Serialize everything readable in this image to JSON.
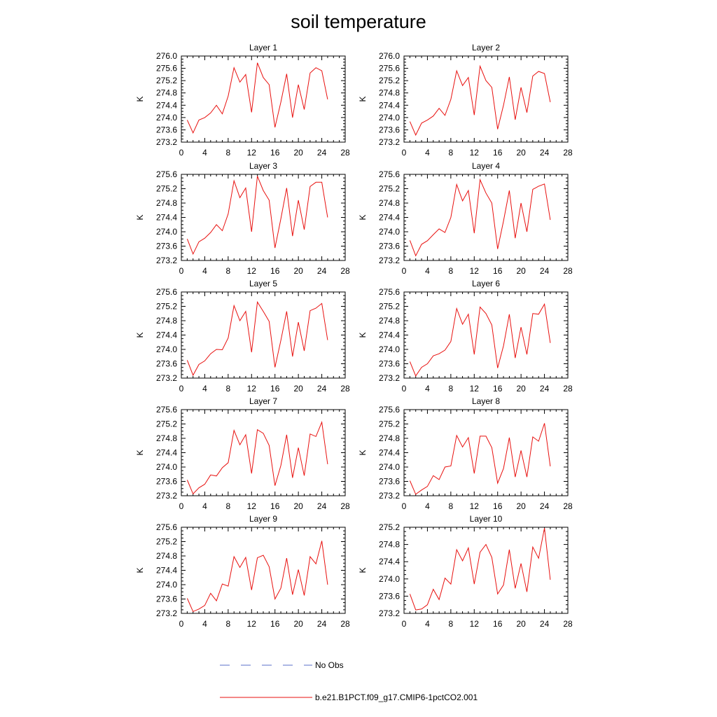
{
  "title": "soil temperature",
  "legend": {
    "entries": [
      {
        "label": "No Obs",
        "color": "#5a6fc9",
        "dash": "dashed"
      },
      {
        "label": "b.e21.B1PCT.f09_g17.CMIP6-1pctCO2.001",
        "color": "#e8110f",
        "dash": "solid"
      }
    ],
    "placement": "bottom-center"
  },
  "chart_data": [
    {
      "type": "line",
      "title": "Layer 1",
      "xlabel": "",
      "ylabel": "K",
      "xlim": [
        0,
        28
      ],
      "xticks": [
        0,
        4,
        8,
        12,
        16,
        20,
        24,
        28
      ],
      "ylim": [
        273.2,
        276.0
      ],
      "yticks": [
        "273.2",
        "273.6",
        "274.0",
        "274.4",
        "274.8",
        "275.2",
        "275.6",
        "276.0"
      ],
      "x": [
        1,
        2,
        3,
        4,
        5,
        6,
        7,
        8,
        9,
        10,
        11,
        12,
        13,
        14,
        15,
        16,
        17,
        18,
        19,
        20,
        21,
        22,
        23,
        24,
        25
      ],
      "series": [
        {
          "name": "b.e21.B1PCT.f09_g17.CMIP6-1pctCO2.001",
          "color": "#e8110f",
          "values": [
            273.92,
            273.5,
            273.92,
            274.0,
            274.15,
            274.4,
            274.12,
            274.7,
            275.62,
            275.15,
            275.4,
            274.17,
            275.78,
            275.3,
            275.07,
            273.68,
            274.5,
            275.42,
            274.0,
            275.07,
            274.26,
            275.45,
            275.62,
            275.52,
            274.59
          ]
        }
      ]
    },
    {
      "type": "line",
      "title": "Layer 2",
      "xlabel": "",
      "ylabel": "K",
      "xlim": [
        0,
        28
      ],
      "xticks": [
        0,
        4,
        8,
        12,
        16,
        20,
        24,
        28
      ],
      "ylim": [
        273.2,
        276.0
      ],
      "yticks": [
        "273.2",
        "273.6",
        "274.0",
        "274.4",
        "274.8",
        "275.2",
        "275.6",
        "276.0"
      ],
      "x": [
        1,
        2,
        3,
        4,
        5,
        6,
        7,
        8,
        9,
        10,
        11,
        12,
        13,
        14,
        15,
        16,
        17,
        18,
        19,
        20,
        21,
        22,
        23,
        24,
        25
      ],
      "series": [
        {
          "name": "b.e21.B1PCT.f09_g17.CMIP6-1pctCO2.001",
          "color": "#e8110f",
          "values": [
            273.87,
            273.43,
            273.82,
            273.92,
            274.05,
            274.3,
            274.07,
            274.59,
            275.52,
            275.04,
            275.3,
            274.08,
            275.67,
            275.2,
            274.98,
            273.62,
            274.4,
            275.32,
            273.93,
            274.98,
            274.16,
            275.35,
            275.5,
            275.43,
            274.5
          ]
        }
      ]
    },
    {
      "type": "line",
      "title": "Layer 3",
      "xlabel": "",
      "ylabel": "K",
      "xlim": [
        0,
        28
      ],
      "xticks": [
        0,
        4,
        8,
        12,
        16,
        20,
        24,
        28
      ],
      "ylim": [
        273.2,
        275.6
      ],
      "yticks": [
        "273.2",
        "273.6",
        "274.0",
        "274.4",
        "274.8",
        "275.2",
        "275.6"
      ],
      "x": [
        1,
        2,
        3,
        4,
        5,
        6,
        7,
        8,
        9,
        10,
        11,
        12,
        13,
        14,
        15,
        16,
        17,
        18,
        19,
        20,
        21,
        22,
        23,
        24,
        25
      ],
      "series": [
        {
          "name": "b.e21.B1PCT.f09_g17.CMIP6-1pctCO2.001",
          "color": "#e8110f",
          "values": [
            273.8,
            273.38,
            273.72,
            273.82,
            273.98,
            274.2,
            274.03,
            274.5,
            275.42,
            274.95,
            275.22,
            274.0,
            275.55,
            275.15,
            274.88,
            273.55,
            274.36,
            275.22,
            273.88,
            274.88,
            274.06,
            275.26,
            275.38,
            275.38,
            274.4
          ]
        }
      ]
    },
    {
      "type": "line",
      "title": "Layer 4",
      "xlabel": "",
      "ylabel": "K",
      "xlim": [
        0,
        28
      ],
      "xticks": [
        0,
        4,
        8,
        12,
        16,
        20,
        24,
        28
      ],
      "ylim": [
        273.2,
        275.6
      ],
      "yticks": [
        "273.2",
        "273.6",
        "274.0",
        "274.4",
        "274.8",
        "275.2",
        "275.6"
      ],
      "x": [
        1,
        2,
        3,
        4,
        5,
        6,
        7,
        8,
        9,
        10,
        11,
        12,
        13,
        14,
        15,
        16,
        17,
        18,
        19,
        20,
        21,
        22,
        23,
        24,
        25
      ],
      "series": [
        {
          "name": "b.e21.B1PCT.f09_g17.CMIP6-1pctCO2.001",
          "color": "#e8110f",
          "values": [
            273.76,
            273.33,
            273.65,
            273.75,
            273.92,
            274.08,
            273.98,
            274.4,
            275.32,
            274.86,
            275.15,
            273.96,
            275.45,
            275.08,
            274.8,
            273.52,
            274.3,
            275.15,
            273.82,
            274.8,
            274.0,
            275.18,
            275.27,
            275.33,
            274.33
          ]
        }
      ]
    },
    {
      "type": "line",
      "title": "Layer 5",
      "xlabel": "",
      "ylabel": "K",
      "xlim": [
        0,
        28
      ],
      "xticks": [
        0,
        4,
        8,
        12,
        16,
        20,
        24,
        28
      ],
      "ylim": [
        273.2,
        275.6
      ],
      "yticks": [
        "273.2",
        "273.6",
        "274.0",
        "274.4",
        "274.8",
        "275.2",
        "275.6"
      ],
      "x": [
        1,
        2,
        3,
        4,
        5,
        6,
        7,
        8,
        9,
        10,
        11,
        12,
        13,
        14,
        15,
        16,
        17,
        18,
        19,
        20,
        21,
        22,
        23,
        24,
        25
      ],
      "series": [
        {
          "name": "b.e21.B1PCT.f09_g17.CMIP6-1pctCO2.001",
          "color": "#e8110f",
          "values": [
            273.7,
            273.28,
            273.58,
            273.68,
            273.88,
            274.0,
            273.99,
            274.32,
            275.22,
            274.8,
            275.06,
            273.92,
            275.32,
            275.06,
            274.78,
            273.5,
            274.25,
            275.06,
            273.8,
            274.76,
            273.96,
            275.08,
            275.15,
            275.28,
            274.26
          ]
        }
      ]
    },
    {
      "type": "line",
      "title": "Layer 6",
      "xlabel": "",
      "ylabel": "K",
      "xlim": [
        0,
        28
      ],
      "xticks": [
        0,
        4,
        8,
        12,
        16,
        20,
        24,
        28
      ],
      "ylim": [
        273.2,
        275.6
      ],
      "yticks": [
        "273.2",
        "273.6",
        "274.0",
        "274.4",
        "274.8",
        "275.2",
        "275.6"
      ],
      "x": [
        1,
        2,
        3,
        4,
        5,
        6,
        7,
        8,
        9,
        10,
        11,
        12,
        13,
        14,
        15,
        16,
        17,
        18,
        19,
        20,
        21,
        22,
        23,
        24,
        25
      ],
      "series": [
        {
          "name": "b.e21.B1PCT.f09_g17.CMIP6-1pctCO2.001",
          "color": "#e8110f",
          "values": [
            273.66,
            273.26,
            273.5,
            273.6,
            273.82,
            273.88,
            273.98,
            274.22,
            275.14,
            274.7,
            274.98,
            273.86,
            275.18,
            275.0,
            274.68,
            273.48,
            274.1,
            274.98,
            273.76,
            274.62,
            273.86,
            275.0,
            274.98,
            275.26,
            274.18
          ]
        }
      ]
    },
    {
      "type": "line",
      "title": "Layer 7",
      "xlabel": "",
      "ylabel": "K",
      "xlim": [
        0,
        28
      ],
      "xticks": [
        0,
        4,
        8,
        12,
        16,
        20,
        24,
        28
      ],
      "ylim": [
        273.2,
        275.6
      ],
      "yticks": [
        "273.2",
        "273.6",
        "274.0",
        "274.4",
        "274.8",
        "275.2",
        "275.6"
      ],
      "x": [
        1,
        2,
        3,
        4,
        5,
        6,
        7,
        8,
        9,
        10,
        11,
        12,
        13,
        14,
        15,
        16,
        17,
        18,
        19,
        20,
        21,
        22,
        23,
        24,
        25
      ],
      "series": [
        {
          "name": "b.e21.B1PCT.f09_g17.CMIP6-1pctCO2.001",
          "color": "#e8110f",
          "values": [
            273.64,
            273.25,
            273.42,
            273.52,
            273.78,
            273.75,
            273.98,
            274.12,
            275.02,
            274.62,
            274.9,
            273.82,
            275.04,
            274.94,
            274.6,
            273.48,
            274.04,
            274.9,
            273.7,
            274.54,
            273.76,
            274.92,
            274.85,
            275.25,
            274.08
          ]
        }
      ]
    },
    {
      "type": "line",
      "title": "Layer 8",
      "xlabel": "",
      "ylabel": "K",
      "xlim": [
        0,
        28
      ],
      "xticks": [
        0,
        4,
        8,
        12,
        16,
        20,
        24,
        28
      ],
      "ylim": [
        273.2,
        275.6
      ],
      "yticks": [
        "273.2",
        "273.6",
        "274.0",
        "274.4",
        "274.8",
        "275.2",
        "275.6"
      ],
      "x": [
        1,
        2,
        3,
        4,
        5,
        6,
        7,
        8,
        9,
        10,
        11,
        12,
        13,
        14,
        15,
        16,
        17,
        18,
        19,
        20,
        21,
        22,
        23,
        24,
        25
      ],
      "series": [
        {
          "name": "b.e21.B1PCT.f09_g17.CMIP6-1pctCO2.001",
          "color": "#e8110f",
          "values": [
            273.62,
            273.24,
            273.36,
            273.46,
            273.76,
            273.65,
            274.0,
            274.03,
            274.88,
            274.56,
            274.82,
            273.82,
            274.86,
            274.86,
            274.54,
            273.55,
            273.96,
            274.82,
            273.72,
            274.46,
            273.72,
            274.84,
            274.72,
            275.22,
            274.02
          ]
        }
      ]
    },
    {
      "type": "line",
      "title": "Layer 9",
      "xlabel": "",
      "ylabel": "K",
      "xlim": [
        0,
        28
      ],
      "xticks": [
        0,
        4,
        8,
        12,
        16,
        20,
        24,
        28
      ],
      "ylim": [
        273.2,
        275.6
      ],
      "yticks": [
        "273.2",
        "273.6",
        "274.0",
        "274.4",
        "274.8",
        "275.2",
        "275.6"
      ],
      "x": [
        1,
        2,
        3,
        4,
        5,
        6,
        7,
        8,
        9,
        10,
        11,
        12,
        13,
        14,
        15,
        16,
        17,
        18,
        19,
        20,
        21,
        22,
        23,
        24,
        25
      ],
      "series": [
        {
          "name": "b.e21.B1PCT.f09_g17.CMIP6-1pctCO2.001",
          "color": "#e8110f",
          "values": [
            273.62,
            273.25,
            273.32,
            273.42,
            273.76,
            273.55,
            274.02,
            273.96,
            274.78,
            274.48,
            274.76,
            273.85,
            274.75,
            274.82,
            274.5,
            273.6,
            273.9,
            274.74,
            273.72,
            274.42,
            273.7,
            274.78,
            274.58,
            275.22,
            274.0
          ]
        }
      ]
    },
    {
      "type": "line",
      "title": "Layer 10",
      "xlabel": "",
      "ylabel": "K",
      "xlim": [
        0,
        28
      ],
      "xticks": [
        0,
        4,
        8,
        12,
        16,
        20,
        24,
        28
      ],
      "ylim": [
        273.2,
        275.2
      ],
      "yticks": [
        "273.2",
        "273.6",
        "274.0",
        "274.4",
        "274.8",
        "275.2"
      ],
      "x": [
        1,
        2,
        3,
        4,
        5,
        6,
        7,
        8,
        9,
        10,
        11,
        12,
        13,
        14,
        15,
        16,
        17,
        18,
        19,
        20,
        21,
        22,
        23,
        24,
        25
      ],
      "series": [
        {
          "name": "b.e21.B1PCT.f09_g17.CMIP6-1pctCO2.001",
          "color": "#e8110f",
          "values": [
            273.65,
            273.28,
            273.3,
            273.4,
            273.76,
            273.52,
            274.02,
            273.88,
            274.68,
            274.42,
            274.72,
            273.88,
            274.62,
            274.8,
            274.5,
            273.65,
            273.86,
            274.68,
            273.78,
            274.36,
            273.7,
            274.74,
            274.48,
            275.18,
            273.98
          ]
        }
      ]
    }
  ]
}
